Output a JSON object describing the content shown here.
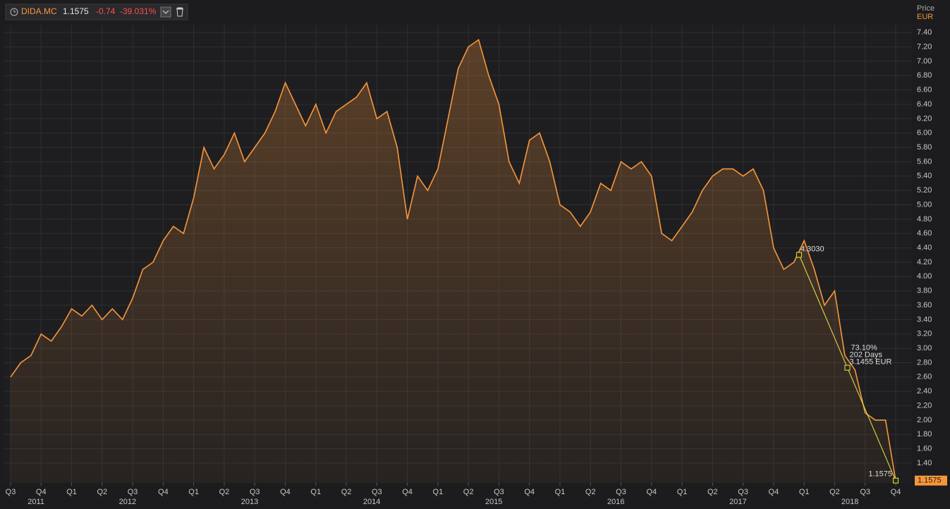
{
  "header": {
    "symbol": "DIDA.MC",
    "change": "-0.74",
    "change_pct": "-39.031%"
  },
  "chart_data": {
    "type": "line",
    "axis_title": "Price",
    "axis_unit": "EUR",
    "categories": [
      "Q3",
      null,
      null,
      "Q4",
      null,
      null,
      "Q1",
      null,
      null,
      "Q2",
      null,
      null,
      "Q3",
      null,
      null,
      "Q4",
      null,
      null,
      "Q1",
      null,
      null,
      "Q2",
      null,
      null,
      "Q3",
      null,
      null,
      "Q4",
      null,
      null,
      "Q1",
      null,
      null,
      "Q2",
      null,
      null,
      "Q3",
      null,
      null,
      "Q4",
      null,
      null,
      "Q1",
      null,
      null,
      "Q2",
      null,
      null,
      "Q3",
      null,
      null,
      "Q4",
      null,
      null,
      "Q1",
      null,
      null,
      "Q2",
      null,
      null,
      "Q3",
      null,
      null,
      "Q4",
      null,
      null,
      "Q1",
      null,
      null,
      "Q2",
      null,
      null,
      "Q3",
      null,
      null,
      "Q4",
      null,
      null,
      "Q1",
      null,
      null,
      "Q2",
      null,
      null,
      "Q3",
      null,
      null,
      "Q4"
    ],
    "years": [
      "2011",
      "2012",
      "2013",
      "2014",
      "2015",
      "2016",
      "2017",
      "2018"
    ],
    "series": [
      {
        "name": "DIDA.MC",
        "color": "#f7963c",
        "values": [
          2.6,
          2.8,
          2.9,
          3.2,
          3.1,
          3.3,
          3.55,
          3.45,
          3.6,
          3.4,
          3.55,
          3.4,
          3.7,
          4.1,
          4.2,
          4.5,
          4.7,
          4.6,
          5.1,
          5.8,
          5.5,
          5.7,
          6.0,
          5.6,
          5.8,
          6.0,
          6.3,
          6.7,
          6.4,
          6.1,
          6.4,
          6.0,
          6.3,
          6.4,
          6.5,
          6.7,
          6.2,
          6.3,
          5.8,
          4.8,
          5.4,
          5.2,
          5.5,
          6.2,
          6.9,
          7.2,
          7.3,
          6.8,
          6.4,
          5.6,
          5.3,
          5.9,
          6.0,
          5.6,
          5.0,
          4.9,
          4.7,
          4.9,
          5.3,
          5.2,
          5.6,
          5.5,
          5.6,
          5.4,
          4.6,
          4.5,
          4.7,
          4.9,
          5.2,
          5.4,
          5.5,
          5.5,
          5.4,
          5.5,
          5.2,
          4.4,
          4.1,
          4.2,
          4.5,
          4.1,
          3.6,
          3.8,
          2.9,
          2.7,
          2.1,
          2.0,
          2.0,
          1.1575
        ]
      }
    ],
    "ylim": [
      1.125,
      7.51
    ],
    "yticks": [
      {
        "value": 1.4,
        "label": "1.40"
      },
      {
        "value": 1.6,
        "label": "1.60"
      },
      {
        "value": 1.8,
        "label": "1.80"
      },
      {
        "value": 2.0,
        "label": "2.00"
      },
      {
        "value": 2.2,
        "label": "2.20"
      },
      {
        "value": 2.4,
        "label": "2.40"
      },
      {
        "value": 2.6,
        "label": "2.60"
      },
      {
        "value": 2.8,
        "label": "2.80"
      },
      {
        "value": 3.0,
        "label": "3.00"
      },
      {
        "value": 3.2,
        "label": "3.20"
      },
      {
        "value": 3.4,
        "label": "3.40"
      },
      {
        "value": 3.6,
        "label": "3.60"
      },
      {
        "value": 3.8,
        "label": "3.80"
      },
      {
        "value": 4.0,
        "label": "4.00"
      },
      {
        "value": 4.2,
        "label": "4.20"
      },
      {
        "value": 4.4,
        "label": "4.40"
      },
      {
        "value": 4.6,
        "label": "4.60"
      },
      {
        "value": 4.8,
        "label": "4.80"
      },
      {
        "value": 5.0,
        "label": "5.00"
      },
      {
        "value": 5.2,
        "label": "5.20"
      },
      {
        "value": 5.4,
        "label": "5.40"
      },
      {
        "value": 5.6,
        "label": "5.60"
      },
      {
        "value": 5.8,
        "label": "5.80"
      },
      {
        "value": 6.0,
        "label": "6.00"
      },
      {
        "value": 6.2,
        "label": "6.20"
      },
      {
        "value": 6.4,
        "label": "6.40"
      },
      {
        "value": 6.6,
        "label": "6.60"
      },
      {
        "value": 6.8,
        "label": "6.80"
      },
      {
        "value": 7.0,
        "label": "7.00"
      },
      {
        "value": 7.2,
        "label": "7.20"
      },
      {
        "value": 7.4,
        "label": "7.40"
      }
    ],
    "grid": true,
    "trend": {
      "start": {
        "value": 4.303,
        "label": "4.3030"
      },
      "mid_value": 2.73,
      "pct": "73.10%",
      "days": "202 Days",
      "change": "3.1455 EUR",
      "color": "#e8e84a"
    }
  }
}
